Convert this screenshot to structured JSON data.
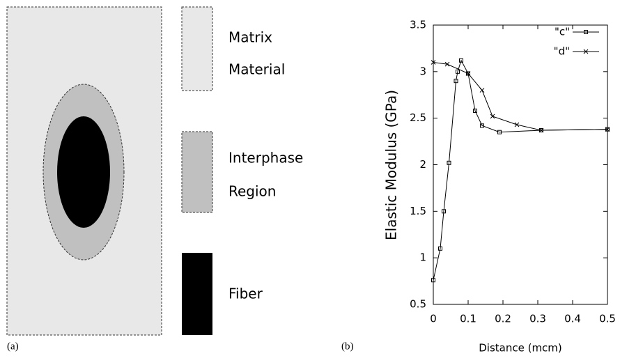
{
  "diagram": {
    "labels": [
      [
        "Matrix",
        "Material"
      ],
      [
        "Interphase",
        "Region"
      ],
      [
        "Fiber"
      ]
    ],
    "panels": [
      "(a)",
      "(b)"
    ]
  },
  "chart_data": {
    "type": "line",
    "x_label": "Distance (mcm)",
    "y_label": "Elastic Modulus (GPa)",
    "xlim": [
      0,
      0.5
    ],
    "xticks": [
      0,
      0.1,
      0.2,
      0.3,
      0.4,
      0.5
    ],
    "ylim": [
      0.5,
      3.5
    ],
    "yticks": [
      0.5,
      1,
      1.5,
      2,
      2.5,
      3,
      3.5
    ],
    "legend": "top-right",
    "series": [
      {
        "name": "\"c\"",
        "color": "#000000",
        "marker": "square",
        "x": [
          0,
          0.02,
          0.03,
          0.045,
          0.065,
          0.07,
          0.08,
          0.1,
          0.12,
          0.14,
          0.19,
          0.31,
          0.5
        ],
        "values": [
          0.76,
          1.1,
          1.5,
          2.02,
          2.9,
          3.0,
          3.12,
          2.98,
          2.58,
          2.42,
          2.35,
          2.37,
          2.38
        ]
      },
      {
        "name": "\"d\"",
        "color": "#000000",
        "marker": "cross",
        "x": [
          0,
          0.04,
          0.1,
          0.14,
          0.17,
          0.24,
          0.31,
          0.5
        ],
        "values": [
          3.1,
          3.08,
          2.98,
          2.8,
          2.52,
          2.43,
          2.37,
          2.38
        ]
      }
    ]
  }
}
